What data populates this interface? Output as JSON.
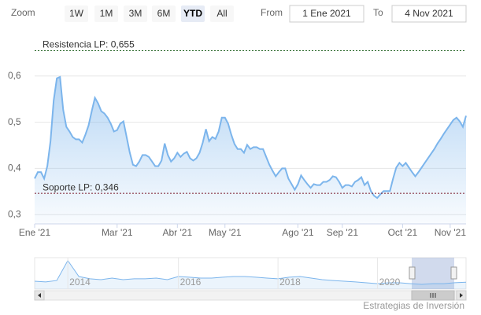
{
  "range_selector": {
    "zoom_label": "Zoom",
    "buttons": [
      "1W",
      "1M",
      "3M",
      "6M",
      "YTD",
      "All"
    ],
    "selected": "YTD",
    "from_label": "From",
    "from_value": "1 Ene 2021",
    "to_label": "To",
    "to_value": "4 Nov 2021"
  },
  "chart_data": {
    "type": "area",
    "color": "#7cb5ec",
    "categories": [
      "Ene '21",
      null,
      null,
      null,
      null,
      null,
      null,
      null,
      null,
      null,
      null,
      null,
      null,
      null,
      null,
      null,
      null,
      null,
      null,
      null,
      null,
      null,
      null,
      null,
      null,
      null,
      "Mar '21",
      null,
      null,
      null,
      null,
      null,
      null,
      null,
      null,
      null,
      null,
      null,
      null,
      null,
      null,
      null,
      null,
      null,
      null,
      "Abr '21",
      null,
      null,
      null,
      null,
      null,
      null,
      null,
      null,
      null,
      null,
      null,
      null,
      null,
      null,
      "May '21",
      null,
      null,
      null,
      null,
      null,
      null,
      null,
      null,
      null,
      null,
      null,
      null,
      null,
      null,
      null,
      null,
      null,
      null,
      null,
      null,
      null,
      null,
      "Ago '21",
      null,
      null,
      null,
      null,
      null,
      null,
      null,
      null,
      null,
      null,
      null,
      null,
      null,
      "Sep '21",
      null,
      null,
      null,
      null,
      null,
      null,
      null,
      null,
      null,
      null,
      null,
      null,
      null,
      null,
      null,
      null,
      null,
      null,
      "Oct '21",
      null,
      null,
      null,
      null,
      null,
      null,
      null,
      null,
      null,
      null,
      null,
      null,
      null,
      null,
      "Nov '21",
      null,
      null,
      null,
      null,
      null
    ],
    "values": [
      0.378,
      0.392,
      0.392,
      0.378,
      0.405,
      0.459,
      0.547,
      0.595,
      0.598,
      0.527,
      0.49,
      0.48,
      0.468,
      0.463,
      0.463,
      0.456,
      0.473,
      0.493,
      0.524,
      0.553,
      0.541,
      0.524,
      0.519,
      0.51,
      0.497,
      0.48,
      0.483,
      0.497,
      0.502,
      0.468,
      0.434,
      0.408,
      0.405,
      0.415,
      0.429,
      0.429,
      0.425,
      0.415,
      0.405,
      0.405,
      0.417,
      0.454,
      0.429,
      0.415,
      0.422,
      0.434,
      0.425,
      0.432,
      0.436,
      0.422,
      0.417,
      0.422,
      0.434,
      0.456,
      0.485,
      0.459,
      0.468,
      0.464,
      0.48,
      0.51,
      0.51,
      0.497,
      0.473,
      0.453,
      0.442,
      0.442,
      0.434,
      0.451,
      0.442,
      0.446,
      0.446,
      0.442,
      0.442,
      0.425,
      0.408,
      0.395,
      0.383,
      0.392,
      0.4,
      0.4,
      0.378,
      0.366,
      0.354,
      0.366,
      0.385,
      0.375,
      0.366,
      0.358,
      0.366,
      0.364,
      0.364,
      0.371,
      0.371,
      0.375,
      0.383,
      0.381,
      0.371,
      0.358,
      0.364,
      0.364,
      0.361,
      0.371,
      0.375,
      0.381,
      0.364,
      0.371,
      0.351,
      0.341,
      0.336,
      0.344,
      0.351,
      0.351,
      0.351,
      0.378,
      0.402,
      0.412,
      0.405,
      0.412,
      0.402,
      0.392,
      0.383,
      0.392,
      0.402,
      0.412,
      0.422,
      0.432,
      0.442,
      0.454,
      0.464,
      0.475,
      0.485,
      0.495,
      0.505,
      0.51,
      0.502,
      0.49,
      0.514
    ],
    "ylim": [
      0.28,
      0.7
    ],
    "yticks": [
      {
        "value": 0.3,
        "label": "0,3"
      },
      {
        "value": 0.4,
        "label": "0,4"
      },
      {
        "value": 0.5,
        "label": "0,5"
      },
      {
        "value": 0.6,
        "label": "0,6"
      }
    ],
    "grid": true,
    "plot_lines": [
      {
        "value": 0.655,
        "label": "Resistencia LP: 0,655",
        "color": "#2d6a2d"
      },
      {
        "value": 0.346,
        "label": "Soporte LP: 0,346",
        "color": "#7a1628"
      }
    ],
    "navigator": {
      "categories": [
        null,
        null,
        null,
        "2014",
        null,
        null,
        null,
        null,
        null,
        null,
        null,
        null,
        null,
        "2016",
        null,
        null,
        null,
        null,
        null,
        null,
        null,
        null,
        "2018",
        null,
        null,
        null,
        null,
        null,
        null,
        null,
        null,
        "2020",
        null,
        null,
        null,
        null,
        null,
        null,
        null,
        null
      ],
      "values": [
        0.55,
        0.5,
        0.6,
        2.0,
        0.88,
        0.72,
        0.66,
        0.77,
        0.66,
        0.72,
        0.72,
        0.77,
        0.66,
        0.88,
        0.83,
        0.77,
        0.77,
        0.83,
        0.88,
        0.88,
        0.83,
        0.77,
        0.72,
        0.83,
        0.88,
        0.77,
        0.66,
        0.6,
        0.55,
        0.5,
        0.44,
        0.38,
        0.44,
        0.44,
        0.38,
        0.33,
        0.38,
        0.38,
        0.45,
        0.48
      ],
      "ylim": [
        0,
        2.2
      ]
    },
    "credits": "Estrategias de Inversión"
  }
}
